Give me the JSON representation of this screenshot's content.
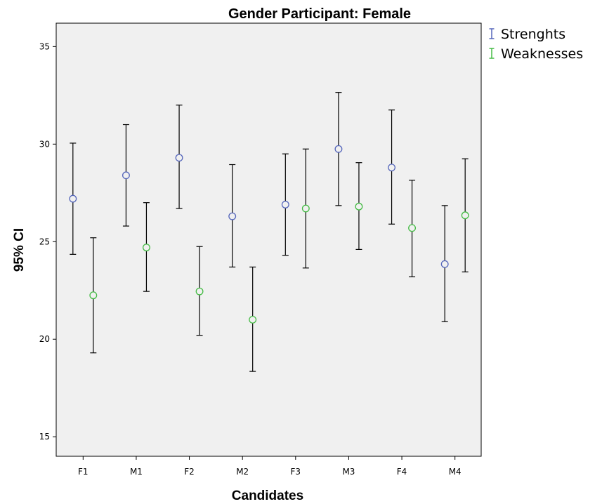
{
  "chart_data": {
    "type": "scatter",
    "title": "Gender Participant: Female",
    "xlabel": "Candidates",
    "ylabel": "95% CI",
    "categories": [
      "F1",
      "M1",
      "F2",
      "M2",
      "F3",
      "M3",
      "F4",
      "M4"
    ],
    "ylim": [
      14,
      36.2
    ],
    "yticks": [
      "15",
      "20",
      "25",
      "30",
      "35"
    ],
    "grid": false,
    "legend_position": "top-right outside",
    "series": [
      {
        "name": "Strenghts",
        "color": "#5566bb",
        "means": [
          27.2,
          28.4,
          29.3,
          26.3,
          26.9,
          29.75,
          28.8,
          23.85
        ],
        "lower": [
          24.35,
          25.8,
          26.7,
          23.7,
          24.3,
          26.85,
          25.9,
          20.9
        ],
        "upper": [
          30.05,
          31.0,
          32.0,
          28.95,
          29.5,
          32.65,
          31.75,
          26.85
        ]
      },
      {
        "name": "Weaknesses",
        "color": "#44bb44",
        "means": [
          22.25,
          24.7,
          22.45,
          21.0,
          26.7,
          26.8,
          25.7,
          26.35
        ],
        "lower": [
          19.3,
          22.45,
          20.2,
          18.35,
          23.65,
          24.6,
          23.2,
          23.45
        ],
        "upper": [
          25.2,
          27.0,
          24.75,
          23.7,
          29.75,
          29.05,
          28.15,
          29.25
        ]
      }
    ]
  }
}
